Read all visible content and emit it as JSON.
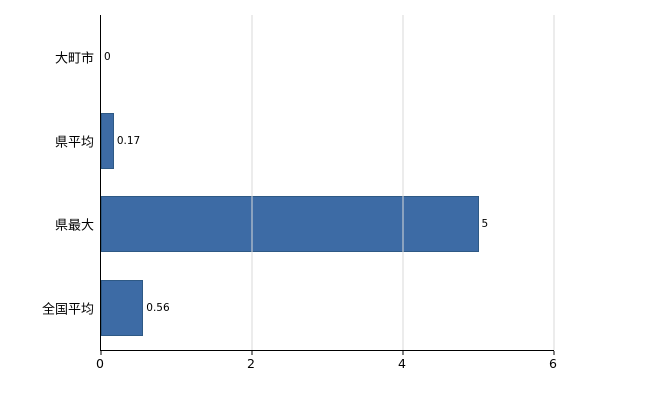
{
  "chart_data": {
    "type": "bar",
    "orientation": "horizontal",
    "title": "",
    "xlabel": "",
    "ylabel": "",
    "categories": [
      "大町市",
      "県平均",
      "県最大",
      "全国平均"
    ],
    "values": [
      0,
      0.17,
      5,
      0.56
    ],
    "value_labels": [
      "0",
      "0.17",
      "5",
      "0.56"
    ],
    "xlim": [
      0,
      6
    ],
    "x_ticks": [
      0,
      2,
      4,
      6
    ],
    "x_tick_labels": [
      "0",
      "2",
      "4",
      "6"
    ],
    "grid": true,
    "legend": "none",
    "colors": {
      "bar_fill": "#3D6BA5",
      "bar_border": "#2E5985",
      "gridline": "#D9D9D9",
      "axis": "#000000",
      "text": "#000000",
      "background": "#FFFFFF"
    }
  }
}
